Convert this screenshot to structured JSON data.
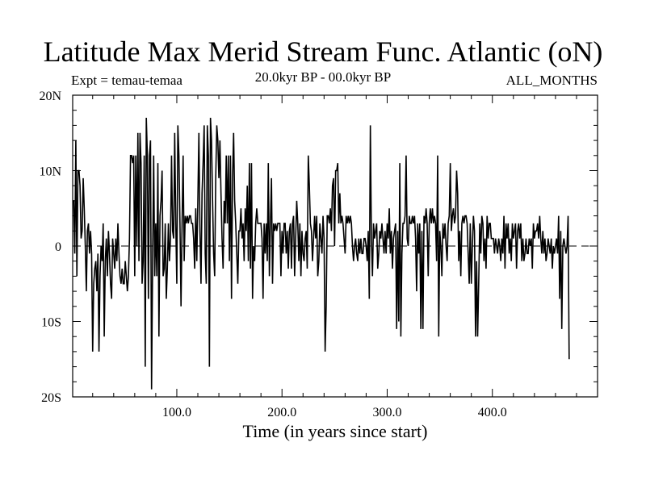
{
  "header": {
    "title": "Latitude Max Merid Stream Func. Atlantic (oN)",
    "expt": "Expt = temau-temaa",
    "period": "20.0kyr BP - 00.0kyr BP",
    "months": "ALL_MONTHS"
  },
  "chart_data": {
    "type": "line",
    "title": "Latitude Max Merid Stream Func. Atlantic (oN)",
    "xlabel": "Time (in years since start)",
    "ylabel": "",
    "xlim": [
      1,
      500
    ],
    "ylim": [
      -20,
      20
    ],
    "x_ticks": [
      100,
      200,
      300,
      400
    ],
    "x_tick_labels": [
      "100.0",
      "200.0",
      "300.0",
      "400.0"
    ],
    "y_ticks": [
      -20,
      -10,
      0,
      10,
      20
    ],
    "y_tick_labels": [
      "20S",
      "10S",
      "0",
      "10N",
      "20N"
    ],
    "zero_line": "dashed",
    "grid": false,
    "series": [
      {
        "name": "temau-temaa",
        "x_start": 1,
        "x_step": 1,
        "values": [
          6,
          6,
          -1,
          14,
          -4,
          10,
          10,
          8,
          1,
          2,
          9,
          5,
          0,
          -6,
          2,
          3,
          -1,
          2,
          -1,
          -14,
          -5,
          -3,
          -2,
          -6,
          -1,
          -14,
          -4,
          0,
          -2,
          3,
          -12,
          -2,
          1,
          -4,
          2,
          -1,
          -5,
          -7,
          1,
          -1,
          -3,
          1,
          -2,
          3,
          -1,
          -4,
          -5,
          -3,
          -5,
          -5,
          -2,
          -4,
          -6,
          -4,
          1,
          12,
          12,
          11,
          12,
          -4,
          12,
          0,
          15,
          -2,
          15,
          11,
          -5,
          -2,
          12,
          -16,
          17,
          12,
          -7,
          12,
          14,
          -19,
          -2,
          12,
          -4,
          3,
          -4,
          11,
          -12,
          4,
          6,
          10,
          -4,
          -3,
          3,
          -7,
          -3,
          3,
          -2,
          1,
          12,
          2,
          1,
          15,
          3,
          -5,
          16,
          12,
          3,
          -8,
          3,
          12,
          -2,
          4,
          3,
          4,
          3,
          4,
          4,
          3,
          3,
          1,
          -3,
          5,
          -2,
          6,
          15,
          2,
          -5,
          7,
          11,
          16,
          -1,
          -5,
          16,
          12,
          -16,
          17,
          14,
          6,
          -1,
          -4,
          9,
          16,
          14,
          9,
          14,
          7,
          1,
          -3,
          6,
          3,
          12,
          3,
          12,
          -2,
          12,
          -7,
          9,
          15,
          6,
          3,
          -1,
          -5,
          2,
          2,
          5,
          1,
          3,
          -2,
          5,
          2,
          8,
          -2,
          11,
          -3,
          11,
          -7,
          0,
          -2,
          3,
          5,
          3,
          3,
          3,
          3,
          1,
          -7,
          3,
          -1,
          3,
          -2,
          11,
          -4,
          3,
          9,
          -5,
          3,
          2,
          3,
          2,
          3,
          3,
          3,
          -4,
          2,
          -1,
          3,
          3,
          -1,
          2,
          -3,
          2,
          3,
          -3,
          3,
          4,
          -4,
          1,
          6,
          3,
          -2,
          3,
          -4,
          2,
          -1,
          -2,
          1,
          2,
          -3,
          12,
          8,
          3,
          2,
          -2,
          1,
          4,
          1,
          4,
          -4,
          -2,
          3,
          1,
          -1,
          4,
          1,
          -14,
          -8,
          4,
          4,
          3,
          5,
          2,
          8,
          9,
          0,
          10,
          10,
          11,
          3,
          7,
          3,
          4,
          3,
          1,
          -1,
          4,
          3,
          4,
          3,
          4,
          3,
          0,
          -2,
          0,
          1,
          -1,
          -2,
          1,
          -1,
          1,
          -1,
          -1,
          1,
          1,
          0,
          -2,
          2,
          -7,
          16,
          1,
          -4,
          3,
          1,
          2,
          3,
          -3,
          -1,
          2,
          1,
          3,
          1,
          -1,
          2,
          -1,
          3,
          1,
          5,
          -1,
          2,
          -3,
          1,
          2,
          3,
          -11,
          2,
          -10,
          11,
          -12,
          -1,
          3,
          3,
          4,
          12,
          1,
          0,
          4,
          3,
          3,
          4,
          3,
          4,
          1,
          -6,
          3,
          -1,
          3,
          -11,
          2,
          -11,
          4,
          3,
          5,
          3,
          -4,
          3,
          5,
          3,
          5,
          3,
          4,
          3,
          -2,
          12,
          -12,
          2,
          0,
          -4,
          3,
          1,
          3,
          0,
          -2,
          3,
          4,
          11,
          2,
          4,
          5,
          3,
          4,
          10,
          7,
          -2,
          2,
          -4,
          3,
          4,
          3,
          4,
          4,
          3,
          -1,
          -5,
          3,
          -5,
          0,
          4,
          2,
          -12,
          -2,
          -12,
          -5,
          3,
          -1,
          4,
          3,
          -2,
          1,
          -3,
          4,
          1,
          3,
          3,
          1,
          1,
          1,
          -1,
          1,
          0,
          -1,
          1,
          0,
          -2,
          1,
          -1,
          4,
          -3,
          3,
          1,
          3,
          -1,
          1,
          -2,
          3,
          1,
          2,
          3,
          -3,
          2,
          3,
          1,
          3,
          -2,
          1,
          -2,
          -1,
          1,
          -1,
          -1,
          1,
          0,
          1,
          -3,
          3,
          1,
          2,
          2,
          3,
          1,
          4,
          1,
          -1,
          2,
          -1,
          1,
          -2,
          -1,
          1,
          0,
          -1,
          1,
          -3,
          0,
          -1,
          0,
          1,
          -1,
          4,
          -7,
          2,
          -11,
          0,
          1,
          0,
          -1,
          0,
          4,
          -15
        ]
      }
    ]
  }
}
